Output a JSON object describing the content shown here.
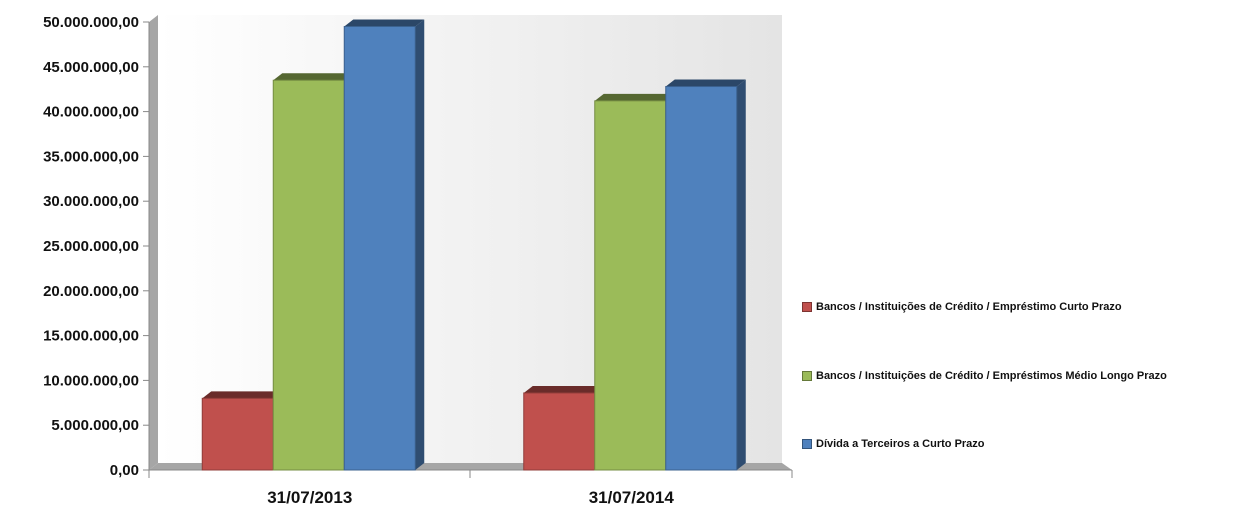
{
  "chart_data": {
    "type": "bar",
    "title": "",
    "xlabel": "",
    "ylabel": "",
    "categories": [
      "31/07/2013",
      "31/07/2014"
    ],
    "series": [
      {
        "name": "Bancos / Instituições de Crédito / Empréstimo Curto Prazo",
        "color": "#c0504d",
        "values": [
          8000000,
          8600000
        ]
      },
      {
        "name": "Bancos / Instituições de Crédito / Empréstimos Médio Longo Prazo",
        "color": "#9bbb59",
        "values": [
          43500000,
          41200000
        ]
      },
      {
        "name": "Dívida a Terceiros a Curto Prazo",
        "color": "#4f81bd",
        "values": [
          49500000,
          42800000
        ]
      }
    ],
    "ylim": [
      0,
      50000000
    ],
    "y_ticks": [
      "0,00",
      "5.000.000,00",
      "10.000.000,00",
      "15.000.000,00",
      "20.000.000,00",
      "25.000.000,00",
      "30.000.000,00",
      "35.000.000,00",
      "40.000.000,00",
      "45.000.000,00",
      "50.000.000,00"
    ],
    "grid": false,
    "legend_position": "right"
  }
}
